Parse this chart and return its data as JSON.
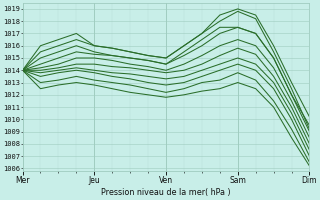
{
  "title": "Pression niveau de la mer( hPa )",
  "ylabel_ticks": [
    1006,
    1007,
    1008,
    1009,
    1010,
    1011,
    1012,
    1013,
    1014,
    1015,
    1016,
    1017,
    1018,
    1019
  ],
  "ylim": [
    1005.8,
    1019.5
  ],
  "xlim": [
    0,
    96
  ],
  "day_ticks": [
    0,
    24,
    48,
    72,
    96
  ],
  "day_labels": [
    "Mer",
    "Jeu",
    "Ven",
    "Sam",
    "Dim"
  ],
  "bg_color": "#c8eee8",
  "grid_color_major": "#a0ccc0",
  "grid_color_minor": "#b8ddd8",
  "line_color": "#2a6e2a",
  "series": [
    {
      "x": [
        0,
        3,
        6,
        12,
        18,
        24,
        30,
        36,
        42,
        48,
        54,
        60,
        66,
        72,
        78,
        84,
        90,
        96
      ],
      "y": [
        1014,
        1015,
        1016,
        1016.5,
        1017,
        1016,
        1015.8,
        1015.5,
        1015.2,
        1015,
        1016,
        1017,
        1018.5,
        1019,
        1018.5,
        1016,
        1013,
        1010.2
      ]
    },
    {
      "x": [
        0,
        3,
        6,
        12,
        18,
        24,
        30,
        36,
        42,
        48,
        54,
        60,
        66,
        72,
        78,
        84,
        90,
        96
      ],
      "y": [
        1014,
        1014.5,
        1015,
        1015.5,
        1016,
        1015.5,
        1015.2,
        1015,
        1014.8,
        1014.5,
        1015.5,
        1016.5,
        1017.5,
        1017.5,
        1017,
        1015,
        1012,
        1009.5
      ]
    },
    {
      "x": [
        0,
        6,
        12,
        18,
        24,
        30,
        36,
        42,
        48,
        54,
        60,
        66,
        72,
        78,
        84,
        90,
        96
      ],
      "y": [
        1014,
        1015.5,
        1016,
        1016.5,
        1016,
        1015.8,
        1015.5,
        1015.2,
        1015,
        1016,
        1017,
        1018,
        1018.8,
        1018.2,
        1015.5,
        1012.5,
        1009.2
      ]
    },
    {
      "x": [
        0,
        6,
        12,
        18,
        24,
        30,
        36,
        42,
        48,
        54,
        60,
        66,
        72,
        78,
        84,
        90,
        96
      ],
      "y": [
        1014,
        1014.5,
        1015,
        1015.5,
        1015.3,
        1015.2,
        1015,
        1014.8,
        1014.5,
        1015.2,
        1016,
        1017,
        1017.5,
        1017,
        1015,
        1012,
        1009
      ]
    },
    {
      "x": [
        0,
        6,
        12,
        18,
        24,
        30,
        36,
        42,
        48,
        54,
        60,
        66,
        72,
        78,
        84,
        90,
        96
      ],
      "y": [
        1014,
        1014.2,
        1014.5,
        1015,
        1015,
        1014.8,
        1014.5,
        1014.3,
        1014,
        1014.5,
        1015.2,
        1016,
        1016.5,
        1016,
        1014.2,
        1011.5,
        1008.5
      ]
    },
    {
      "x": [
        0,
        6,
        12,
        18,
        24,
        30,
        36,
        42,
        48,
        54,
        60,
        66,
        72,
        78,
        84,
        90,
        96
      ],
      "y": [
        1014,
        1014,
        1014.2,
        1014.5,
        1014.5,
        1014.3,
        1014.2,
        1014,
        1013.8,
        1014,
        1014.5,
        1015.2,
        1015.8,
        1015.3,
        1013.5,
        1011,
        1008
      ]
    },
    {
      "x": [
        0,
        6,
        12,
        18,
        24,
        30,
        36,
        42,
        48,
        54,
        60,
        66,
        72,
        78,
        84,
        90,
        96
      ],
      "y": [
        1014,
        1013.8,
        1014,
        1014.2,
        1014,
        1013.8,
        1013.7,
        1013.5,
        1013.3,
        1013.5,
        1014,
        1014.5,
        1015,
        1014.5,
        1013,
        1010.5,
        1007.5
      ]
    },
    {
      "x": [
        0,
        6,
        12,
        18,
        24,
        30,
        36,
        42,
        48,
        54,
        60,
        66,
        72,
        78,
        84,
        90,
        96
      ],
      "y": [
        1014,
        1013.5,
        1013.8,
        1014,
        1013.8,
        1013.5,
        1013.3,
        1013,
        1012.8,
        1013,
        1013.5,
        1014,
        1014.5,
        1014,
        1012.5,
        1010,
        1007
      ]
    },
    {
      "x": [
        0,
        6,
        12,
        18,
        24,
        30,
        36,
        42,
        48,
        54,
        60,
        66,
        72,
        78,
        84,
        90,
        96
      ],
      "y": [
        1014,
        1013,
        1013.2,
        1013.5,
        1013.2,
        1013,
        1012.8,
        1012.5,
        1012.2,
        1012.5,
        1013,
        1013.2,
        1013.8,
        1013.2,
        1011.5,
        1009.2,
        1006.5
      ]
    },
    {
      "x": [
        0,
        6,
        12,
        18,
        24,
        30,
        36,
        42,
        48,
        54,
        60,
        66,
        72,
        78,
        84,
        90,
        96
      ],
      "y": [
        1014,
        1012.5,
        1012.8,
        1013,
        1012.8,
        1012.5,
        1012.2,
        1012,
        1011.8,
        1012,
        1012.3,
        1012.5,
        1013,
        1012.5,
        1011,
        1008.5,
        1006.2
      ]
    }
  ]
}
